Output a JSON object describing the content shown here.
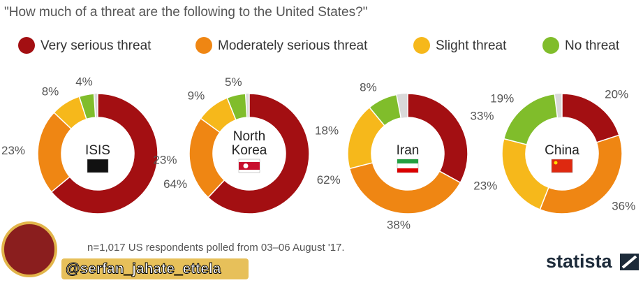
{
  "chart_data": {
    "type": "donut",
    "title": "\"How much of a threat are the following to the United States?\"",
    "categories": [
      "Very serious threat",
      "Moderately serious threat",
      "Slight threat",
      "No threat"
    ],
    "colors": [
      "#a30f12",
      "#ef8613",
      "#f6b81b",
      "#80bd2b"
    ],
    "series": [
      {
        "name": "ISIS",
        "values": [
          64,
          23,
          8,
          4
        ],
        "value_labels": [
          "64%",
          "23%",
          "8%",
          "4%"
        ]
      },
      {
        "name": "North Korea",
        "values": [
          62,
          23,
          9,
          5
        ],
        "value_labels": [
          "62%",
          "23%",
          "9%",
          "5%"
        ]
      },
      {
        "name": "Iran",
        "values": [
          33,
          38,
          18,
          8
        ],
        "value_labels": [
          "33%",
          "38%",
          "18%",
          "8%"
        ]
      },
      {
        "name": "China",
        "values": [
          20,
          36,
          23,
          19
        ],
        "value_labels": [
          "20%",
          "36%",
          "23%",
          "19%"
        ]
      }
    ],
    "note": "n=1,017 US respondents polled from 03–06 August '17.",
    "source": "statista",
    "watermark": "@serfan_jahate_ettela"
  }
}
